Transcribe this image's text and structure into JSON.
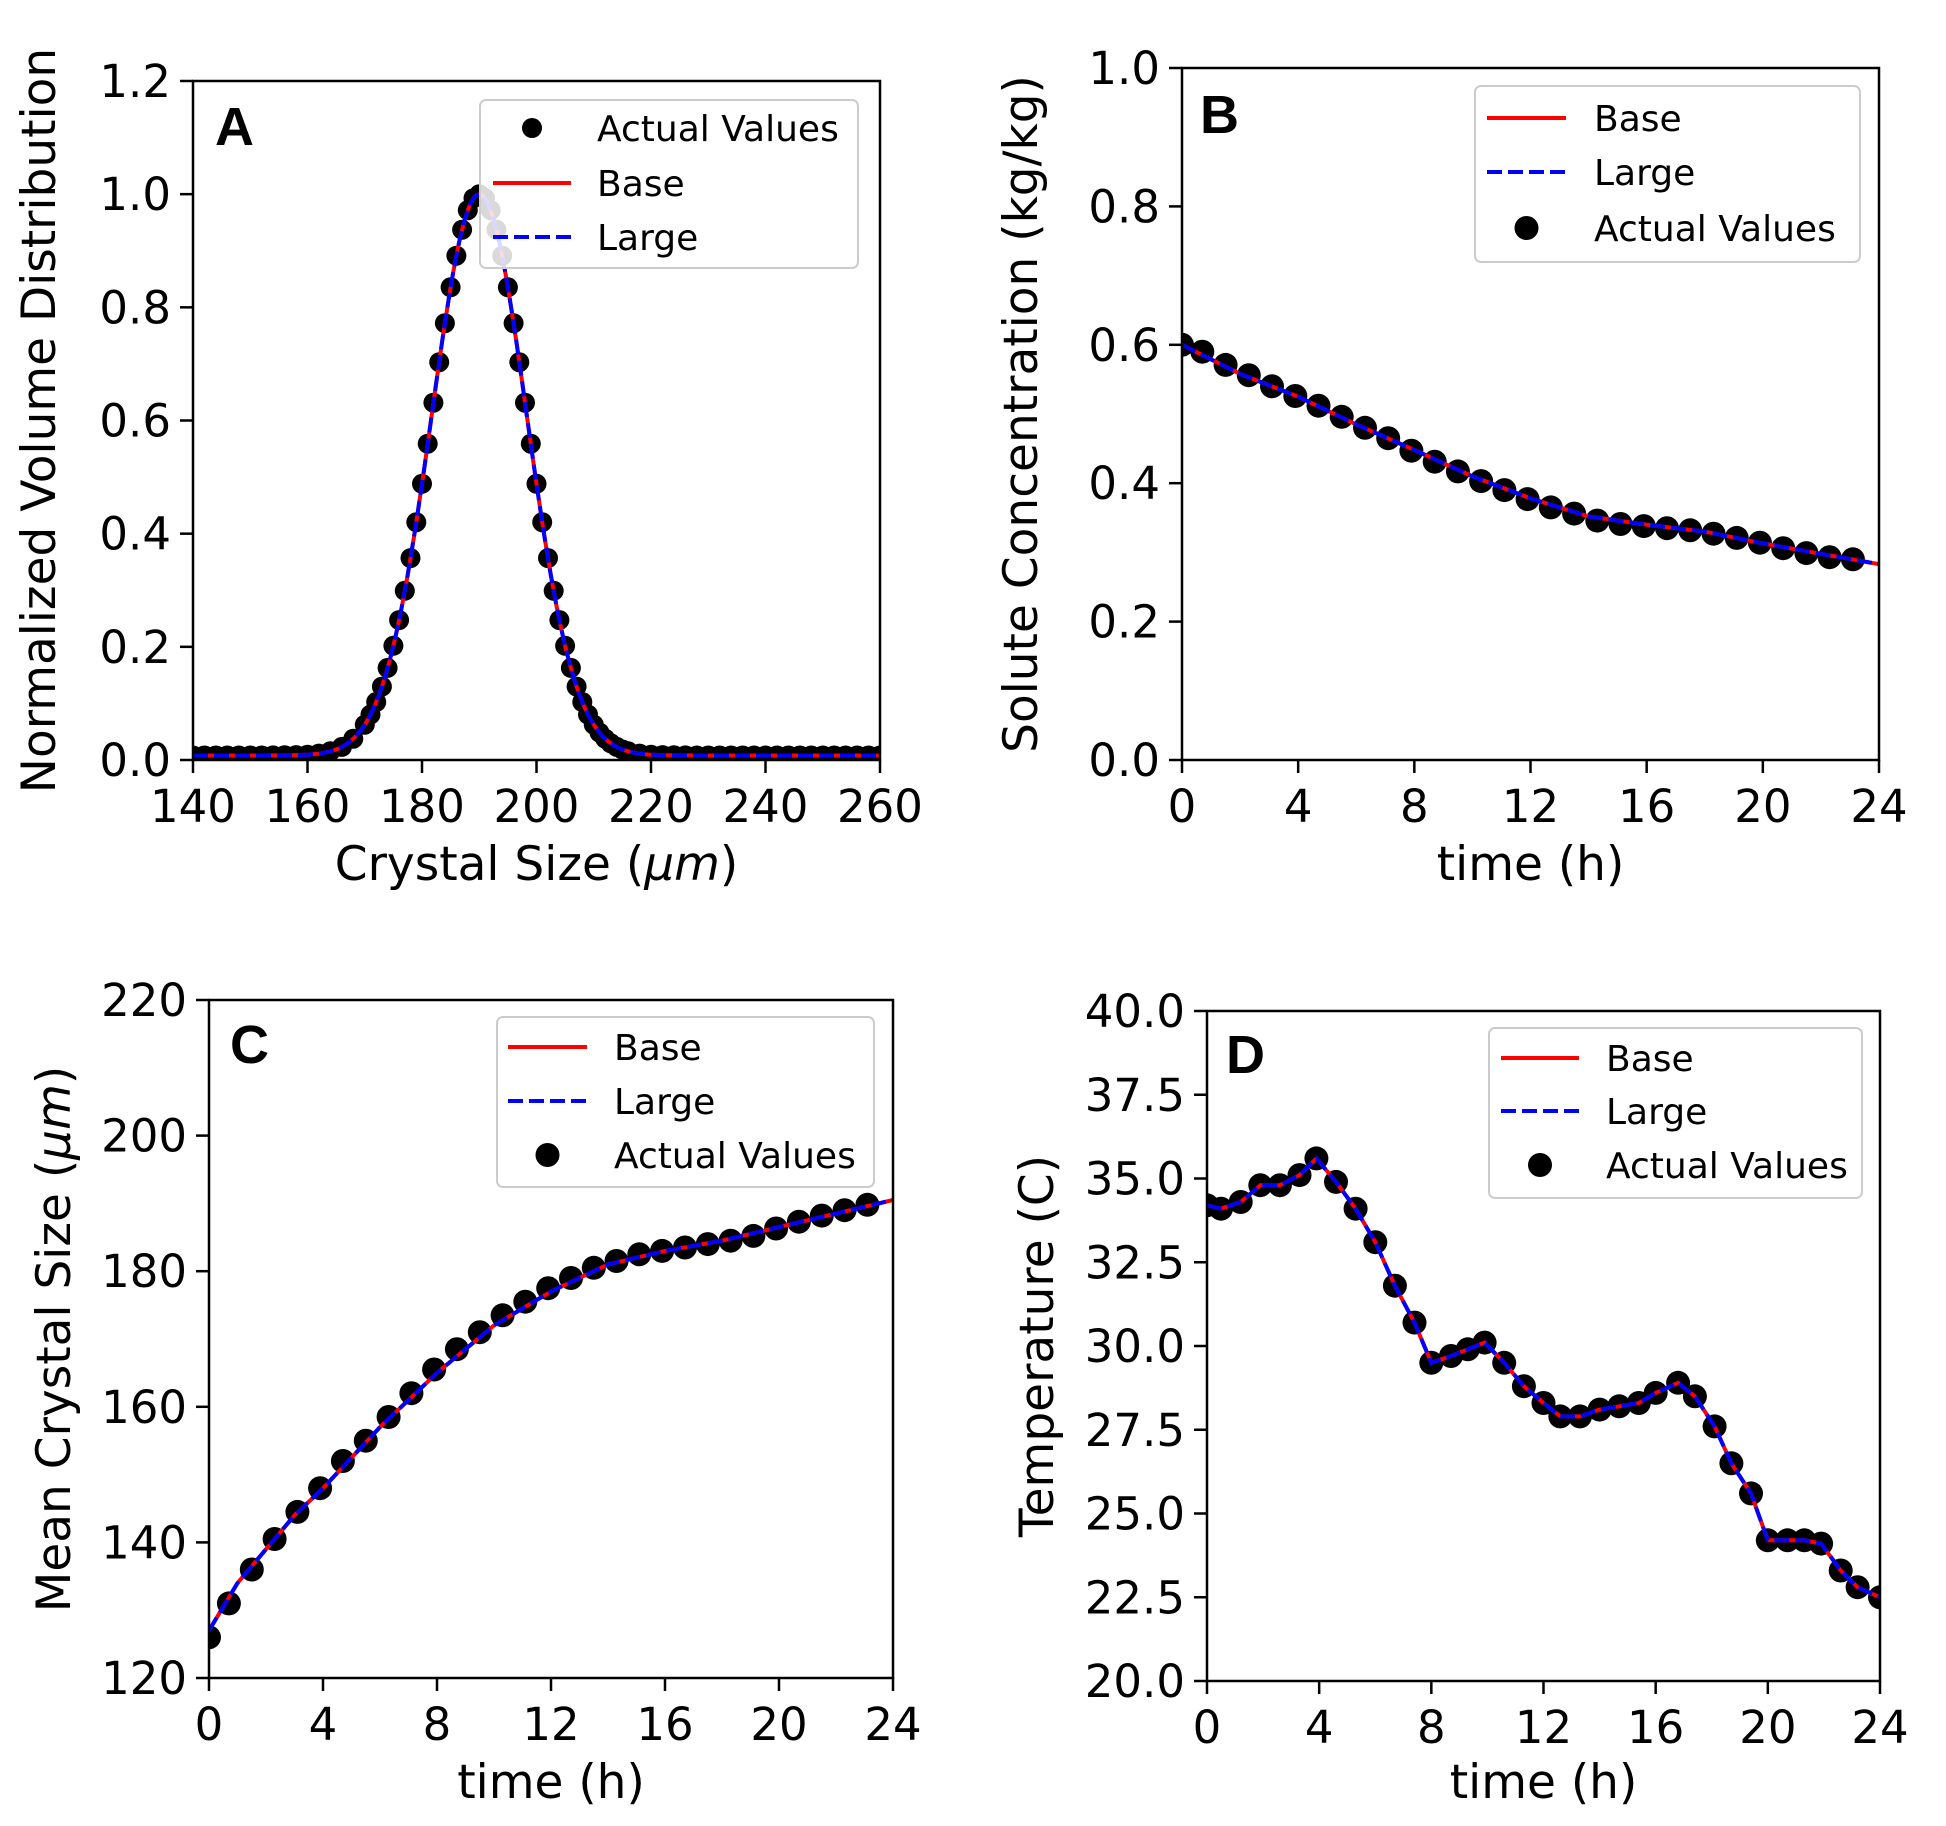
{
  "colors": {
    "base": "#ff0000",
    "large": "#0000ff",
    "actual": "#000000"
  },
  "chart_data": [
    {
      "type": "line",
      "panel": "A",
      "xlabel": "Crystal Size (",
      "xlabel_unit": "μm",
      "xlabel_close": ")",
      "ylabel": "Normalized Volume Distribution",
      "xlim": [
        140,
        260
      ],
      "ylim": [
        0,
        1.2
      ],
      "xticks": [
        140,
        160,
        180,
        200,
        220,
        240,
        260
      ],
      "yticks": [
        0.0,
        0.2,
        0.4,
        0.6,
        0.8,
        1.0,
        1.2
      ],
      "ytick_labels": [
        "0.0",
        "0.2",
        "0.4",
        "0.6",
        "0.8",
        "1.0",
        "1.2"
      ],
      "legend": {
        "position": "top-right",
        "entries": [
          "Actual Values",
          "Base",
          "Large"
        ],
        "order": [
          "actual",
          "base",
          "large"
        ]
      },
      "curve": {
        "kind": "gaussian",
        "mean": 190,
        "sigma": 8.3,
        "baseline": 0.008,
        "xmin": 140,
        "xmax": 260
      },
      "actual_points": {
        "x": [
          140,
          142,
          144,
          146,
          148,
          150,
          152,
          154,
          156,
          158,
          160,
          162,
          164,
          166,
          168,
          170,
          171,
          172,
          173,
          174,
          175,
          176,
          177,
          178,
          179,
          180,
          181,
          182,
          183,
          184,
          185,
          186,
          187,
          188,
          189,
          190,
          191,
          192,
          193,
          194,
          195,
          196,
          197,
          198,
          199,
          200,
          201,
          202,
          203,
          204,
          205,
          206,
          207,
          208,
          209,
          210,
          211,
          212,
          213,
          214,
          215,
          216,
          218,
          220,
          222,
          224,
          226,
          228,
          230,
          232,
          234,
          236,
          238,
          240,
          242,
          244,
          246,
          248,
          250,
          252,
          254,
          256,
          258,
          260
        ],
        "kind": "gaussian",
        "mean": 190,
        "sigma": 8.3,
        "baseline": 0.008
      }
    },
    {
      "type": "line",
      "panel": "B",
      "xlabel": "time (h)",
      "ylabel": "Solute Concentration (kg/kg)",
      "xlim": [
        0,
        24
      ],
      "ylim": [
        0,
        1.0
      ],
      "xticks": [
        0,
        4,
        8,
        12,
        16,
        20,
        24
      ],
      "yticks": [
        0.0,
        0.2,
        0.4,
        0.6,
        0.8,
        1.0
      ],
      "ytick_labels": [
        "0.0",
        "0.2",
        "0.4",
        "0.6",
        "0.8",
        "1.0"
      ],
      "legend": {
        "position": "top-right",
        "entries": [
          "Base",
          "Large",
          "Actual Values"
        ],
        "order": [
          "base",
          "large",
          "actual"
        ]
      },
      "series": [
        {
          "name": "Base",
          "x": [
            0,
            2,
            4,
            6,
            8,
            10,
            12,
            14,
            16,
            18,
            20,
            22,
            24
          ],
          "values": [
            0.6,
            0.558,
            0.525,
            0.485,
            0.448,
            0.41,
            0.378,
            0.352,
            0.34,
            0.33,
            0.313,
            0.298,
            0.283
          ]
        },
        {
          "name": "Large",
          "x": [
            0,
            2,
            4,
            6,
            8,
            10,
            12,
            14,
            16,
            18,
            20,
            22,
            24
          ],
          "values": [
            0.6,
            0.558,
            0.525,
            0.485,
            0.448,
            0.41,
            0.378,
            0.352,
            0.34,
            0.33,
            0.313,
            0.298,
            0.283
          ]
        },
        {
          "name": "Actual Values",
          "x": [
            0,
            0.7,
            1.5,
            2.3,
            3.1,
            3.9,
            4.7,
            5.5,
            6.3,
            7.1,
            7.9,
            8.7,
            9.5,
            10.3,
            11.1,
            11.9,
            12.7,
            13.5,
            14.3,
            15.1,
            15.9,
            16.7,
            17.5,
            18.3,
            19.1,
            19.9,
            20.7,
            21.5,
            22.3,
            23.1
          ],
          "values": [
            0.6,
            0.59,
            0.571,
            0.556,
            0.54,
            0.526,
            0.512,
            0.496,
            0.48,
            0.465,
            0.447,
            0.431,
            0.417,
            0.403,
            0.39,
            0.377,
            0.365,
            0.356,
            0.346,
            0.341,
            0.338,
            0.335,
            0.332,
            0.327,
            0.321,
            0.314,
            0.306,
            0.299,
            0.293,
            0.29
          ]
        }
      ]
    },
    {
      "type": "line",
      "panel": "C",
      "xlabel": "time (h)",
      "ylabel": "Mean Crystal Size (",
      "ylabel_unit": "μm",
      "ylabel_close": ")",
      "xlim": [
        0,
        24
      ],
      "ylim": [
        120,
        220
      ],
      "xticks": [
        0,
        4,
        8,
        12,
        16,
        20,
        24
      ],
      "yticks": [
        120,
        140,
        160,
        180,
        200,
        220
      ],
      "ytick_labels": [
        "120",
        "140",
        "160",
        "180",
        "200",
        "220"
      ],
      "legend": {
        "position": "top-right",
        "entries": [
          "Base",
          "Large",
          "Actual Values"
        ],
        "order": [
          "base",
          "large",
          "actual"
        ]
      },
      "series": [
        {
          "name": "Base",
          "x": [
            0,
            1,
            2,
            3,
            4,
            6,
            8,
            10,
            12,
            14,
            16,
            18,
            20,
            22,
            24
          ],
          "values": [
            127,
            134,
            139,
            144,
            148,
            157,
            165,
            172,
            177,
            181,
            183,
            184.5,
            186.5,
            188.5,
            190.5
          ]
        },
        {
          "name": "Large",
          "x": [
            0,
            1,
            2,
            3,
            4,
            6,
            8,
            10,
            12,
            14,
            16,
            18,
            20,
            22,
            24
          ],
          "values": [
            127,
            134,
            139,
            144,
            148,
            157,
            165,
            172,
            177,
            181,
            183,
            184.5,
            186.5,
            188.5,
            190.5
          ]
        },
        {
          "name": "Actual Values",
          "x": [
            0,
            0.7,
            1.5,
            2.3,
            3.1,
            3.9,
            4.7,
            5.5,
            6.3,
            7.1,
            7.9,
            8.7,
            9.5,
            10.3,
            11.1,
            11.9,
            12.7,
            13.5,
            14.3,
            15.1,
            15.9,
            16.7,
            17.5,
            18.3,
            19.1,
            19.9,
            20.7,
            21.5,
            22.3,
            23.1
          ],
          "values": [
            126,
            131,
            136,
            140.5,
            144.5,
            148,
            152,
            155,
            158.5,
            162,
            165.5,
            168.5,
            171,
            173.5,
            175.5,
            177.5,
            179,
            180.5,
            181.5,
            182.5,
            183,
            183.5,
            184,
            184.5,
            185.2,
            186.3,
            187.3,
            188.2,
            189,
            189.8
          ]
        }
      ]
    },
    {
      "type": "line",
      "panel": "D",
      "xlabel": "time (h)",
      "ylabel": "Temperature (C)",
      "xlim": [
        0,
        24
      ],
      "ylim": [
        20,
        40
      ],
      "xticks": [
        0,
        4,
        8,
        12,
        16,
        20,
        24
      ],
      "yticks": [
        20.0,
        22.5,
        25.0,
        27.5,
        30.0,
        32.5,
        35.0,
        37.5,
        40.0
      ],
      "ytick_labels": [
        "20.0",
        "22.5",
        "25.0",
        "27.5",
        "30.0",
        "32.5",
        "35.0",
        "37.5",
        "40.0"
      ],
      "legend": {
        "position": "top-right",
        "entries": [
          "Base",
          "Large",
          "Actual Values"
        ],
        "order": [
          "base",
          "large",
          "actual"
        ]
      },
      "series": [
        {
          "name": "Base",
          "x": [
            0,
            0.5,
            1.2,
            1.9,
            2.6,
            3.3,
            3.9,
            4.6,
            5.3,
            6.0,
            6.7,
            7.4,
            8.0,
            8.7,
            9.3,
            9.9,
            10.6,
            11.3,
            12.0,
            12.6,
            13.3,
            14.0,
            14.7,
            15.4,
            16.0,
            16.8,
            17.4,
            18.1,
            18.7,
            19.4,
            20.0,
            20.7,
            21.3,
            21.9,
            22.6,
            23.2,
            24.0
          ],
          "values": [
            34.2,
            34.1,
            34.3,
            34.8,
            34.8,
            35.1,
            35.6,
            34.9,
            34.1,
            33.1,
            31.8,
            30.7,
            29.5,
            29.7,
            29.9,
            30.1,
            29.5,
            28.8,
            28.3,
            27.9,
            27.9,
            28.1,
            28.2,
            28.3,
            28.6,
            28.9,
            28.5,
            27.6,
            26.5,
            25.6,
            24.2,
            24.2,
            24.2,
            24.1,
            23.3,
            22.8,
            22.5
          ]
        },
        {
          "name": "Large",
          "x": [
            0,
            0.5,
            1.2,
            1.9,
            2.6,
            3.3,
            3.9,
            4.6,
            5.3,
            6.0,
            6.7,
            7.4,
            8.0,
            8.7,
            9.3,
            9.9,
            10.6,
            11.3,
            12.0,
            12.6,
            13.3,
            14.0,
            14.7,
            15.4,
            16.0,
            16.8,
            17.4,
            18.1,
            18.7,
            19.4,
            20.0,
            20.7,
            21.3,
            21.9,
            22.6,
            23.2,
            24.0
          ],
          "values": [
            34.2,
            34.1,
            34.3,
            34.8,
            34.8,
            35.1,
            35.6,
            34.9,
            34.1,
            33.1,
            31.8,
            30.7,
            29.5,
            29.7,
            29.9,
            30.1,
            29.5,
            28.8,
            28.3,
            27.9,
            27.9,
            28.1,
            28.2,
            28.3,
            28.6,
            28.9,
            28.5,
            27.6,
            26.5,
            25.6,
            24.2,
            24.2,
            24.2,
            24.1,
            23.3,
            22.8,
            22.5
          ]
        },
        {
          "name": "Actual Values",
          "x": [
            0,
            0.5,
            1.2,
            1.9,
            2.6,
            3.3,
            3.9,
            4.6,
            5.3,
            6.0,
            6.7,
            7.4,
            8.0,
            8.7,
            9.3,
            9.9,
            10.6,
            11.3,
            12.0,
            12.6,
            13.3,
            14.0,
            14.7,
            15.4,
            16.0,
            16.8,
            17.4,
            18.1,
            18.7,
            19.4,
            20.0,
            20.7,
            21.3,
            21.9,
            22.6,
            23.2,
            24.0
          ],
          "values": [
            34.2,
            34.1,
            34.3,
            34.8,
            34.8,
            35.1,
            35.6,
            34.9,
            34.1,
            33.1,
            31.8,
            30.7,
            29.5,
            29.7,
            29.9,
            30.1,
            29.5,
            28.8,
            28.3,
            27.9,
            27.9,
            28.1,
            28.2,
            28.3,
            28.6,
            28.9,
            28.5,
            27.6,
            26.5,
            25.6,
            24.2,
            24.2,
            24.2,
            24.1,
            23.3,
            22.8,
            22.5
          ]
        }
      ]
    }
  ]
}
